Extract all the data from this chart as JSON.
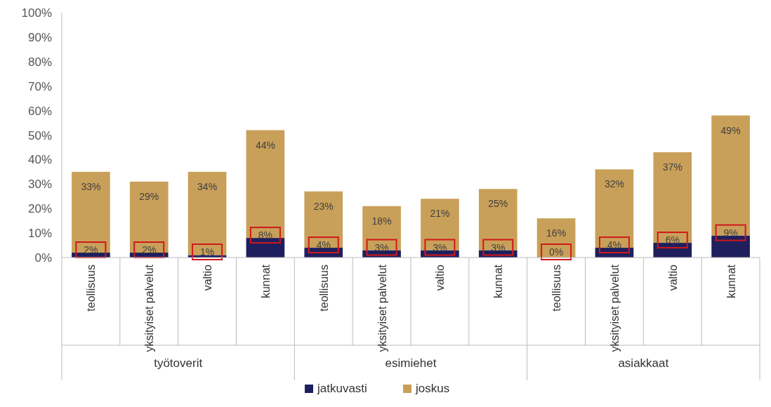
{
  "chart_data": {
    "type": "bar",
    "stacked": true,
    "categories": [
      "teollisuus",
      "yksityiset palvelut",
      "valtio",
      "kunnat",
      "teollisuus",
      "yksityiset palvelut",
      "valtio",
      "kunnat",
      "teollisuus",
      "yksityiset palvelut",
      "valtio",
      "kunnat"
    ],
    "series": [
      {
        "name": "jatkuvasti",
        "color": "#1f1f5e",
        "values": [
          2,
          2,
          1,
          8,
          4,
          3,
          3,
          3,
          0,
          4,
          6,
          9
        ],
        "value_labels": [
          "2%",
          "2%",
          "1%",
          "8%",
          "4%",
          "3%",
          "3%",
          "3%",
          "0%",
          "4%",
          "6%",
          "9%"
        ]
      },
      {
        "name": "joskus",
        "color": "#c9a059",
        "values": [
          33,
          29,
          34,
          44,
          23,
          18,
          21,
          25,
          16,
          32,
          37,
          49
        ],
        "value_labels": [
          "33%",
          "29%",
          "34%",
          "44%",
          "23%",
          "18%",
          "21%",
          "25%",
          "16%",
          "32%",
          "37%",
          "49%"
        ]
      }
    ],
    "annotations": [
      "työtoverit",
      "esimiehet",
      "asiakkaat"
    ],
    "ylim": [
      0,
      100
    ],
    "yticks": [
      {
        "value": 0,
        "label": "0%"
      },
      {
        "value": 10,
        "label": "10%"
      },
      {
        "value": 20,
        "label": "20%"
      },
      {
        "value": 30,
        "label": "30%"
      },
      {
        "value": 40,
        "label": "40%"
      },
      {
        "value": 50,
        "label": "50%"
      },
      {
        "value": 60,
        "label": "60%"
      },
      {
        "value": 70,
        "label": "70%"
      },
      {
        "value": 80,
        "label": "80%"
      },
      {
        "value": 90,
        "label": "90%"
      },
      {
        "value": 100,
        "label": "100%"
      }
    ],
    "legend": "bottom",
    "grid": false
  }
}
